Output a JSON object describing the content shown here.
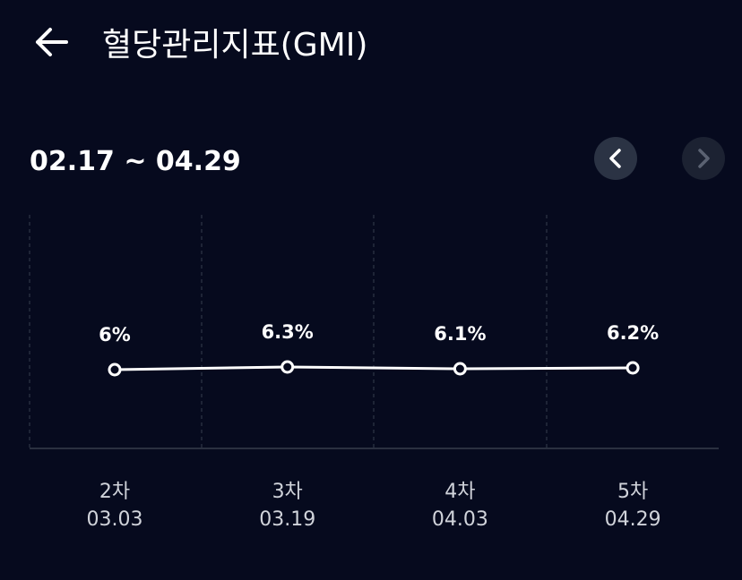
{
  "header": {
    "title": "혈당관리지표(GMI)"
  },
  "date_range": "02.17 ~ 04.29",
  "chart_data": {
    "type": "line",
    "categories": [
      "2차",
      "3차",
      "4차",
      "5차"
    ],
    "dates": [
      "03.03",
      "03.19",
      "04.03",
      "04.29"
    ],
    "values": [
      6,
      6.3,
      6.1,
      6.2
    ],
    "value_labels": [
      "6%",
      "6.3%",
      "6.1%",
      "6.2%"
    ],
    "color": "#ffffff"
  }
}
